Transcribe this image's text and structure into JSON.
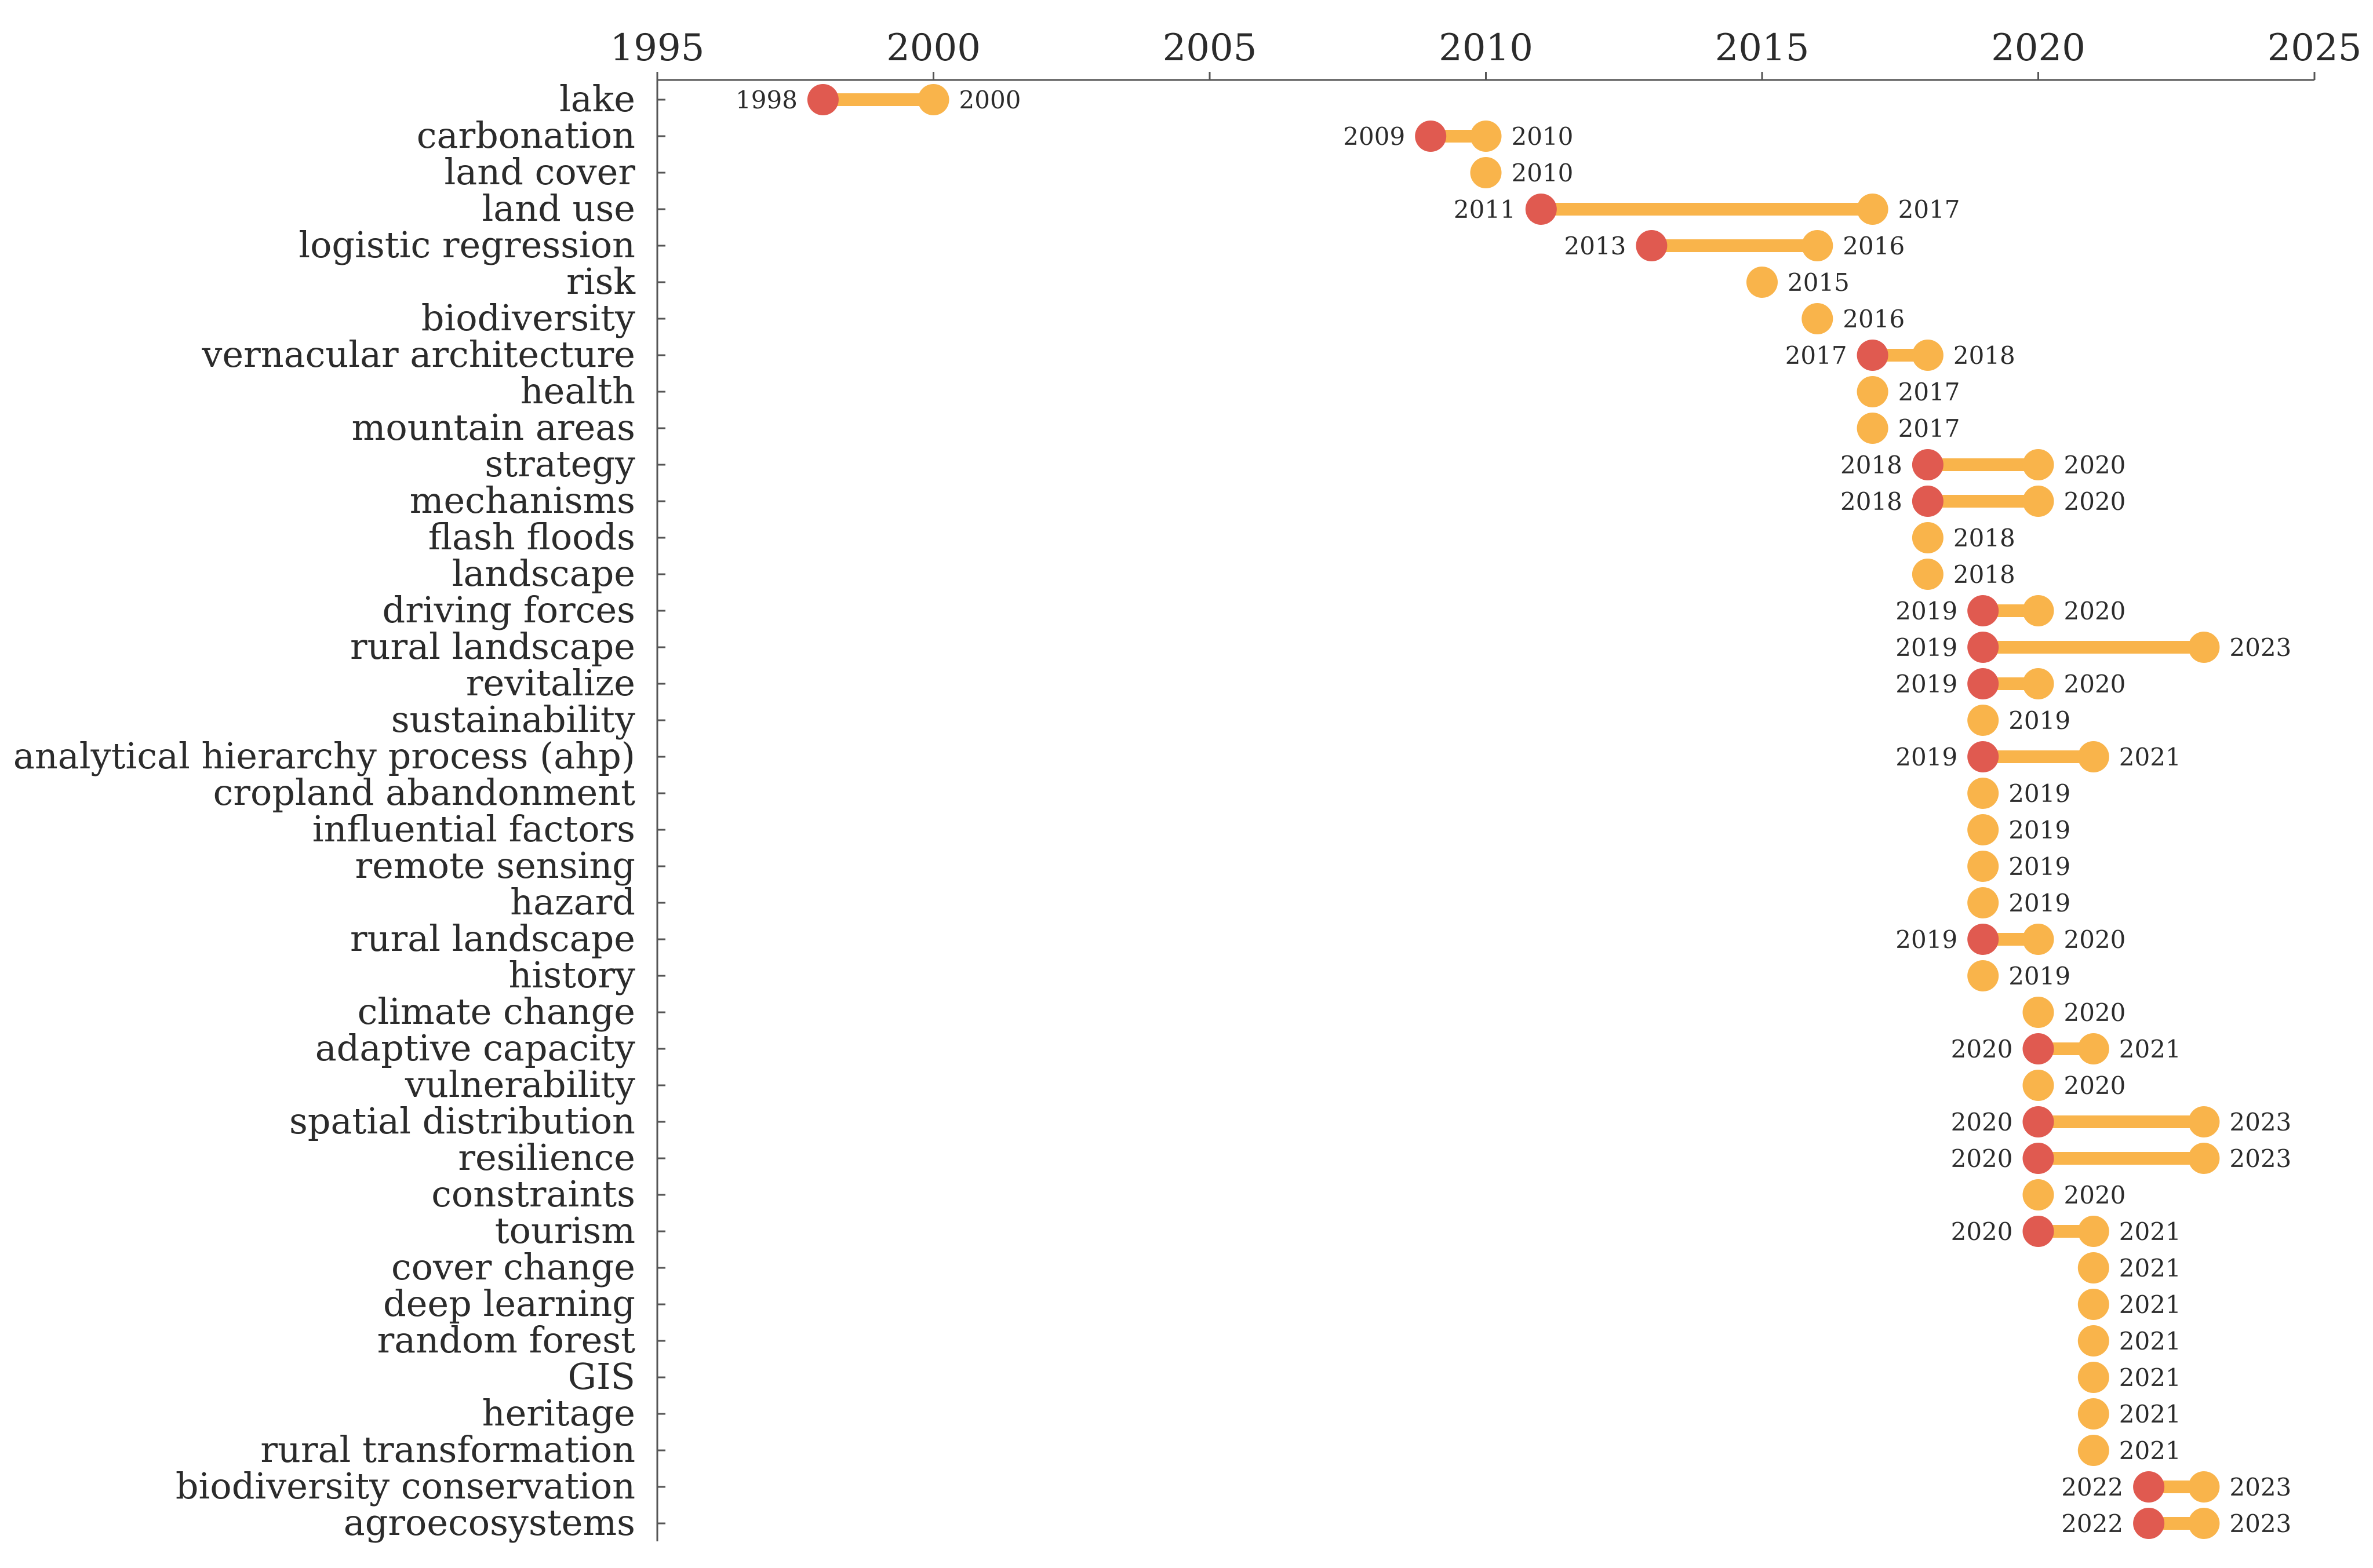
{
  "chart_data": {
    "type": "dumbbell",
    "title": "",
    "xlabel": "",
    "ylabel": "",
    "xlim": [
      1995,
      2025
    ],
    "xticks": [
      1995,
      2000,
      2005,
      2010,
      2015,
      2020,
      2025
    ],
    "colors": {
      "start": "#E05A50",
      "end": "#F9B44B",
      "bar": "#F9B44B"
    },
    "keywords": [
      {
        "label": "lake",
        "start": 1998,
        "end": 2000
      },
      {
        "label": "carbonation",
        "start": 2009,
        "end": 2010
      },
      {
        "label": "land cover",
        "start": null,
        "end": 2010
      },
      {
        "label": "land use",
        "start": 2011,
        "end": 2017
      },
      {
        "label": "logistic regression",
        "start": 2013,
        "end": 2016
      },
      {
        "label": "risk",
        "start": null,
        "end": 2015
      },
      {
        "label": "biodiversity",
        "start": null,
        "end": 2016
      },
      {
        "label": "vernacular architecture",
        "start": 2017,
        "end": 2018
      },
      {
        "label": "health",
        "start": null,
        "end": 2017
      },
      {
        "label": "mountain areas",
        "start": null,
        "end": 2017
      },
      {
        "label": "strategy",
        "start": 2018,
        "end": 2020
      },
      {
        "label": "mechanisms",
        "start": 2018,
        "end": 2020
      },
      {
        "label": "flash floods",
        "start": null,
        "end": 2018
      },
      {
        "label": "landscape",
        "start": null,
        "end": 2018
      },
      {
        "label": "driving forces",
        "start": 2019,
        "end": 2020
      },
      {
        "label": "rural landscape",
        "start": 2019,
        "end": 2023
      },
      {
        "label": "revitalize",
        "start": 2019,
        "end": 2020
      },
      {
        "label": "sustainability",
        "start": null,
        "end": 2019
      },
      {
        "label": "analytical hierarchy process (ahp)",
        "start": 2019,
        "end": 2021
      },
      {
        "label": "cropland abandonment",
        "start": null,
        "end": 2019
      },
      {
        "label": "influential factors",
        "start": null,
        "end": 2019
      },
      {
        "label": "remote sensing",
        "start": null,
        "end": 2019
      },
      {
        "label": "hazard",
        "start": null,
        "end": 2019
      },
      {
        "label": "rural landscape",
        "start": 2019,
        "end": 2020
      },
      {
        "label": "history",
        "start": null,
        "end": 2019
      },
      {
        "label": "climate change",
        "start": null,
        "end": 2020
      },
      {
        "label": "adaptive capacity",
        "start": 2020,
        "end": 2021
      },
      {
        "label": "vulnerability",
        "start": null,
        "end": 2020
      },
      {
        "label": "spatial distribution",
        "start": 2020,
        "end": 2023
      },
      {
        "label": "resilience",
        "start": 2020,
        "end": 2023
      },
      {
        "label": "constraints",
        "start": null,
        "end": 2020
      },
      {
        "label": "tourism",
        "start": 2020,
        "end": 2021
      },
      {
        "label": "cover change",
        "start": null,
        "end": 2021
      },
      {
        "label": "deep learning",
        "start": null,
        "end": 2021
      },
      {
        "label": "random forest",
        "start": null,
        "end": 2021
      },
      {
        "label": "GIS",
        "start": null,
        "end": 2021
      },
      {
        "label": "heritage",
        "start": null,
        "end": 2021
      },
      {
        "label": "rural transformation",
        "start": null,
        "end": 2021
      },
      {
        "label": "biodiversity conservation",
        "start": 2022,
        "end": 2023
      },
      {
        "label": "agroecosystems",
        "start": 2022,
        "end": 2023
      }
    ]
  }
}
